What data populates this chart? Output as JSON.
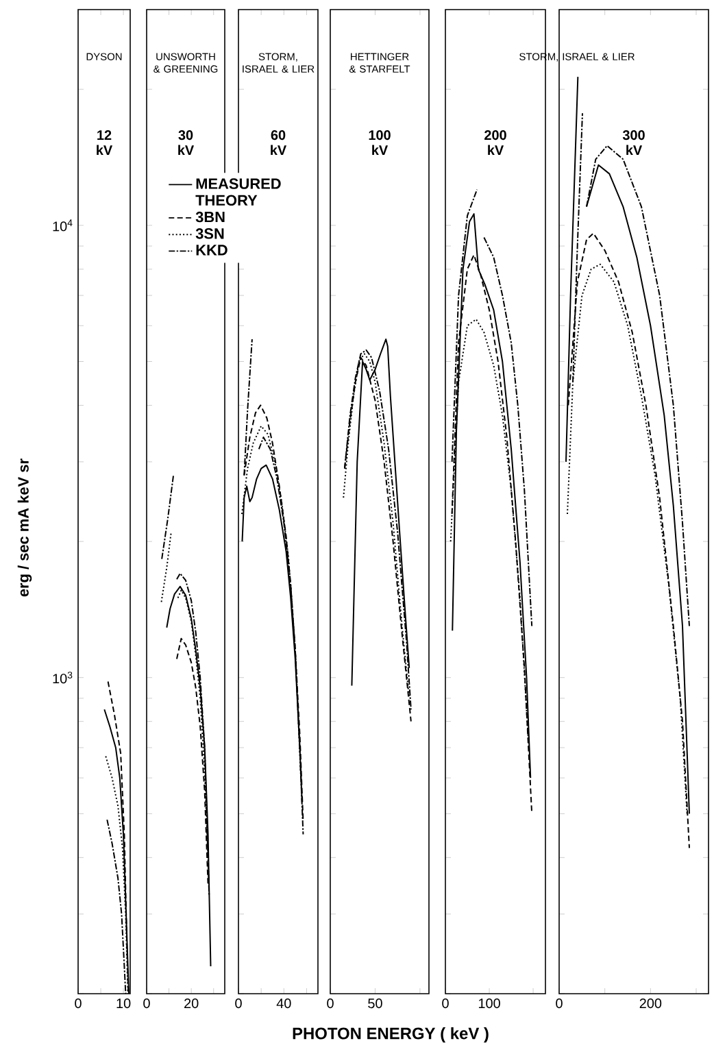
{
  "chart_data": [
    {
      "type": "line",
      "title": "DYSON",
      "subtitle": "12 kV",
      "ylabel": "erg / sec  mA  keV  sr",
      "log": "y",
      "xlim": [
        0,
        11.5
      ],
      "xticks": [
        0,
        {
          "value": 5,
          "label": null
        },
        10
      ],
      "ylim": [
        200,
        30000
      ],
      "yticks": [
        {
          "value": 200,
          "label": null
        },
        {
          "value": 300,
          "label": null
        },
        {
          "value": 400,
          "label": null
        },
        {
          "value": 500,
          "label": null
        },
        {
          "value": 600,
          "label": null
        },
        {
          "value": 700,
          "label": null
        },
        {
          "value": 800,
          "label": null
        },
        {
          "value": 900,
          "label": null
        },
        {
          "value": 1000,
          "label": "10$^{3}$"
        },
        {
          "value": 2000,
          "label": null
        },
        {
          "value": 3000,
          "label": null
        },
        {
          "value": 4000,
          "label": null
        },
        {
          "value": 5000,
          "label": null
        },
        {
          "value": 6000,
          "label": null
        },
        {
          "value": 7000,
          "label": null
        },
        {
          "value": 8000,
          "label": null
        },
        {
          "value": 9000,
          "label": null
        },
        {
          "value": 10000,
          "label": "10$^{4}$"
        },
        {
          "value": 20000,
          "label": null
        }
      ],
      "series": [
        {
          "color": "#000000",
          "line_style": "solid",
          "x": [
            5.8,
            7,
            8.3,
            9.2,
            10,
            10.6,
            11.2
          ],
          "values": [
            850,
            780,
            700,
            600,
            450,
            300,
            200
          ]
        },
        {
          "color": "#000000",
          "line_style": "dashed",
          "x": [
            6.6,
            8,
            9.4,
            10.2,
            10.8,
            11.1
          ],
          "values": [
            980,
            830,
            680,
            450,
            250,
            200
          ]
        },
        {
          "color": "#000000",
          "line_style": "dotted",
          "x": [
            6.1,
            7.5,
            8.8,
            9.8,
            10.5,
            11
          ],
          "values": [
            670,
            600,
            520,
            420,
            300,
            200
          ]
        },
        {
          "color": "#000000",
          "line_style": "dashdot",
          "x": [
            6.4,
            7.5,
            8.8,
            9.6,
            10.2,
            10.5
          ],
          "values": [
            485,
            430,
            360,
            300,
            230,
            200
          ]
        }
      ]
    },
    {
      "type": "line",
      "title": "UNSWORTH & GREENING",
      "subtitle": "30 kV",
      "log": "y",
      "tick_labels": "x",
      "legend": "top",
      "legend_title": "THEORY",
      "xlim": [
        0,
        35
      ],
      "xticks": [
        0,
        {
          "value": 10,
          "label": null
        },
        20,
        {
          "value": 30,
          "label": null
        }
      ],
      "ylim": [
        200,
        30000
      ],
      "yticks": [
        {
          "value": 200,
          "label": null
        },
        {
          "value": 300,
          "label": null
        },
        {
          "value": 400,
          "label": null
        },
        {
          "value": 500,
          "label": null
        },
        {
          "value": 600,
          "label": null
        },
        {
          "value": 700,
          "label": null
        },
        {
          "value": 800,
          "label": null
        },
        {
          "value": 900,
          "label": null
        },
        {
          "value": 1000,
          "label": null
        },
        {
          "value": 2000,
          "label": null
        },
        {
          "value": 3000,
          "label": null
        },
        {
          "value": 4000,
          "label": null
        },
        {
          "value": 5000,
          "label": null
        },
        {
          "value": 6000,
          "label": null
        },
        {
          "value": 7000,
          "label": null
        },
        {
          "value": 8000,
          "label": null
        },
        {
          "value": 9000,
          "label": null
        },
        {
          "value": 10000,
          "label": null
        },
        {
          "value": 20000,
          "label": null
        }
      ],
      "series": [
        {
          "name": "MEASURED",
          "color": "#000000",
          "line_style": "solid",
          "x": [
            9,
            10.5,
            12.5,
            15,
            17.5,
            20,
            22,
            24,
            26,
            27.5,
            28.7
          ],
          "values": [
            1290,
            1420,
            1530,
            1590,
            1520,
            1350,
            1150,
            950,
            700,
            450,
            230
          ]
        },
        {
          "name": "3BN",
          "color": "#000000",
          "line_style": "dashed",
          "x": [
            13.5,
            15.5,
            17.5,
            20,
            22,
            24,
            26,
            27.5
          ],
          "values": [
            1100,
            1220,
            1180,
            1080,
            950,
            780,
            560,
            350
          ]
        },
        {
          "name": "3SN",
          "color": "#000000",
          "line_style": "dotted",
          "x": [
            14,
            15.5,
            17.5,
            20,
            22,
            24,
            26,
            27.5
          ],
          "values": [
            1500,
            1560,
            1500,
            1330,
            1120,
            900,
            620,
            400
          ]
        },
        {
          "name": "KKD",
          "color": "#000000",
          "line_style": "dashdot",
          "x": [
            13.5,
            15,
            17.5,
            20,
            22,
            24,
            26,
            28
          ],
          "values": [
            1650,
            1700,
            1640,
            1480,
            1260,
            1000,
            700,
            330
          ]
        },
        {
          "color": "#000000",
          "line_style": "dotted",
          "x": [
            6.6,
            9,
            11
          ],
          "values": [
            1470,
            1750,
            2100
          ]
        },
        {
          "color": "#000000",
          "line_style": "dashdot",
          "x": [
            6.8,
            9.5,
            12
          ],
          "values": [
            1830,
            2250,
            2800
          ]
        }
      ]
    },
    {
      "type": "line",
      "title": "STORM, ISRAEL & LIER",
      "subtitle": "60 kV",
      "log": "y",
      "tick_labels": "x",
      "xlim": [
        0,
        70
      ],
      "xticks": [
        0,
        {
          "value": 20,
          "label": null
        },
        40,
        {
          "value": 60,
          "label": null
        }
      ],
      "ylim": [
        200,
        30000
      ],
      "yticks": [
        {
          "value": 200,
          "label": null
        },
        {
          "value": 300,
          "label": null
        },
        {
          "value": 400,
          "label": null
        },
        {
          "value": 500,
          "label": null
        },
        {
          "value": 600,
          "label": null
        },
        {
          "value": 700,
          "label": null
        },
        {
          "value": 800,
          "label": null
        },
        {
          "value": 900,
          "label": null
        },
        {
          "value": 1000,
          "label": null
        },
        {
          "value": 2000,
          "label": null
        },
        {
          "value": 3000,
          "label": null
        },
        {
          "value": 4000,
          "label": null
        },
        {
          "value": 5000,
          "label": null
        },
        {
          "value": 6000,
          "label": null
        },
        {
          "value": 7000,
          "label": null
        },
        {
          "value": 8000,
          "label": null
        },
        {
          "value": 9000,
          "label": null
        },
        {
          "value": 10000,
          "label": null
        },
        {
          "value": 20000,
          "label": null
        }
      ],
      "series": [
        {
          "color": "#000000",
          "line_style": "solid",
          "x": [
            3.3,
            5,
            7.3,
            10,
            12,
            16,
            20,
            24.4,
            30,
            36,
            42,
            46,
            50,
            54,
            56
          ],
          "values": [
            2000,
            2500,
            2650,
            2450,
            2500,
            2750,
            2900,
            2950,
            2750,
            2350,
            1900,
            1500,
            1100,
            700,
            530
          ]
        },
        {
          "color": "#000000",
          "line_style": "dashed",
          "x": [
            5,
            10,
            15,
            19.5,
            25,
            30,
            36,
            42,
            46,
            50,
            54,
            57
          ],
          "values": [
            2800,
            3400,
            3850,
            4000,
            3750,
            3300,
            2650,
            2050,
            1600,
            1150,
            750,
            480
          ]
        },
        {
          "color": "#000000",
          "line_style": "dotted",
          "x": [
            3,
            8,
            13,
            20,
            26,
            32,
            38,
            44,
            50,
            55
          ],
          "values": [
            2300,
            2900,
            3300,
            3600,
            3450,
            3000,
            2450,
            1850,
            1150,
            600
          ]
        },
        {
          "color": "#000000",
          "line_style": "dashdot",
          "x": [
            5,
            8,
            12,
            14,
            18,
            22,
            28,
            34,
            40,
            46,
            50,
            54,
            57
          ],
          "values": [
            2800,
            3900,
            5600,
            null,
            3200,
            3400,
            3200,
            2750,
            2200,
            1600,
            1150,
            700,
            450
          ]
        }
      ]
    },
    {
      "type": "line",
      "title": "HETTINGER & STARFELT",
      "subtitle": "100 kV",
      "xlabel": "PHOTON  ENERGY ( keV )",
      "log": "y",
      "tick_labels": "x",
      "xlim": [
        0,
        110
      ],
      "xticks": [
        0,
        50,
        {
          "value": 100,
          "label": null
        }
      ],
      "ylim": [
        200,
        30000
      ],
      "yticks": [
        {
          "value": 200,
          "label": null
        },
        {
          "value": 300,
          "label": null
        },
        {
          "value": 400,
          "label": null
        },
        {
          "value": 500,
          "label": null
        },
        {
          "value": 600,
          "label": null
        },
        {
          "value": 700,
          "label": null
        },
        {
          "value": 800,
          "label": null
        },
        {
          "value": 900,
          "label": null
        },
        {
          "value": 1000,
          "label": null
        },
        {
          "value": 2000,
          "label": null
        },
        {
          "value": 3000,
          "label": null
        },
        {
          "value": 4000,
          "label": null
        },
        {
          "value": 5000,
          "label": null
        },
        {
          "value": 6000,
          "label": null
        },
        {
          "value": 7000,
          "label": null
        },
        {
          "value": 8000,
          "label": null
        },
        {
          "value": 9000,
          "label": null
        },
        {
          "value": 10000,
          "label": null
        },
        {
          "value": 20000,
          "label": null
        }
      ],
      "series": [
        {
          "color": "#000000",
          "line_style": "solid",
          "x": [
            24,
            30,
            36,
            40,
            44,
            50,
            56,
            62,
            64,
            67,
            72,
            78,
            84,
            88
          ],
          "values": [
            960,
            3000,
            5000,
            4800,
            4550,
            4800,
            5200,
            5600,
            5400,
            4200,
            3000,
            2000,
            1350,
            1050
          ]
        },
        {
          "color": "#000000",
          "line_style": "dashed",
          "x": [
            16,
            22,
            28,
            34,
            40,
            50,
            60,
            70,
            80,
            90
          ],
          "values": [
            2900,
            3700,
            4500,
            5100,
            4900,
            4100,
            3000,
            2000,
            1250,
            800
          ]
        },
        {
          "color": "#000000",
          "line_style": "dotted",
          "x": [
            14.7,
            20,
            26,
            32,
            38,
            44,
            50,
            60,
            70,
            80,
            88
          ],
          "values": [
            2500,
            3300,
            4200,
            5000,
            5200,
            5000,
            4500,
            3300,
            2200,
            1300,
            900
          ]
        },
        {
          "color": "#000000",
          "line_style": "dashdot",
          "x": [
            16,
            22,
            28,
            34,
            40,
            46,
            55,
            65,
            75,
            85,
            90
          ],
          "values": [
            2900,
            3800,
            4600,
            5200,
            5300,
            5100,
            4300,
            3200,
            2100,
            1200,
            850
          ]
        }
      ]
    },
    {
      "type": "line",
      "title": "STORM, ISRAEL & LIER",
      "subtitle": "200 kV",
      "log": "y",
      "tick_labels": "x",
      "xlim": [
        0,
        228
      ],
      "xticks": [
        0,
        100,
        {
          "value": 200,
          "label": null
        }
      ],
      "ylim": [
        200,
        30000
      ],
      "yticks": [
        {
          "value": 200,
          "label": null
        },
        {
          "value": 300,
          "label": null
        },
        {
          "value": 400,
          "label": null
        },
        {
          "value": 500,
          "label": null
        },
        {
          "value": 600,
          "label": null
        },
        {
          "value": 700,
          "label": null
        },
        {
          "value": 800,
          "label": null
        },
        {
          "value": 900,
          "label": null
        },
        {
          "value": 1000,
          "label": null
        },
        {
          "value": 2000,
          "label": null
        },
        {
          "value": 3000,
          "label": null
        },
        {
          "value": 4000,
          "label": null
        },
        {
          "value": 5000,
          "label": null
        },
        {
          "value": 6000,
          "label": null
        },
        {
          "value": 7000,
          "label": null
        },
        {
          "value": 8000,
          "label": null
        },
        {
          "value": 9000,
          "label": null
        },
        {
          "value": 10000,
          "label": null
        },
        {
          "value": 20000,
          "label": null
        }
      ],
      "series": [
        {
          "color": "#000000",
          "line_style": "solid",
          "x": [
            16,
            25,
            40,
            55,
            65,
            75,
            90,
            110,
            130,
            150,
            170,
            185,
            194
          ],
          "values": [
            1270,
            3500,
            8000,
            10200,
            10600,
            8000,
            7400,
            6500,
            5000,
            3200,
            1800,
            1000,
            600
          ]
        },
        {
          "color": "#000000",
          "line_style": "dashed",
          "x": [
            15,
            30,
            50,
            65,
            80,
            100,
            120,
            140,
            160,
            180,
            197
          ],
          "values": [
            2300,
            5500,
            8000,
            8600,
            7800,
            6500,
            5000,
            3400,
            2000,
            1050,
            500
          ]
        },
        {
          "color": "#000000",
          "line_style": "dotted",
          "x": [
            12,
            30,
            50,
            70,
            88,
            110,
            130,
            150,
            170,
            190
          ],
          "values": [
            2000,
            4500,
            6000,
            6200,
            5800,
            4900,
            3800,
            2600,
            1500,
            700
          ]
        },
        {
          "color": "#000000",
          "line_style": "dashdot",
          "x": [
            15,
            30,
            50,
            72,
            80,
            88,
            110,
            130,
            150,
            165,
            180,
            197
          ],
          "values": [
            3000,
            7000,
            10500,
            12000,
            null,
            9400,
            8500,
            7000,
            5500,
            4000,
            2600,
            1300
          ]
        }
      ]
    },
    {
      "type": "line",
      "subtitle": "300 kV",
      "log": "y",
      "tick_labels": "x",
      "xlim": [
        0,
        327
      ],
      "xticks": [
        0,
        {
          "value": 100,
          "label": null
        },
        200,
        {
          "value": 300,
          "label": null
        }
      ],
      "ylim": [
        200,
        30000
      ],
      "yticks": [
        {
          "value": 200,
          "label": null
        },
        {
          "value": 300,
          "label": null
        },
        {
          "value": 400,
          "label": null
        },
        {
          "value": 500,
          "label": null
        },
        {
          "value": 600,
          "label": null
        },
        {
          "value": 700,
          "label": null
        },
        {
          "value": 800,
          "label": null
        },
        {
          "value": 900,
          "label": null
        },
        {
          "value": 1000,
          "label": null
        },
        {
          "value": 2000,
          "label": null
        },
        {
          "value": 3000,
          "label": null
        },
        {
          "value": 4000,
          "label": null
        },
        {
          "value": 5000,
          "label": null
        },
        {
          "value": 6000,
          "label": null
        },
        {
          "value": 7000,
          "label": null
        },
        {
          "value": 8000,
          "label": null
        },
        {
          "value": 9000,
          "label": null
        },
        {
          "value": 10000,
          "label": null
        },
        {
          "value": 20000,
          "label": null
        }
      ],
      "series": [
        {
          "color": "#000000",
          "line_style": "solid",
          "x": [
            60,
            86,
            110,
            140,
            170,
            200,
            230,
            250,
            270,
            285
          ],
          "values": [
            11000,
            13600,
            13000,
            11000,
            8500,
            6000,
            3800,
            2400,
            1300,
            500
          ]
        },
        {
          "color": "#000000",
          "line_style": "dashed",
          "x": [
            20,
            40,
            60,
            75,
            100,
            130,
            160,
            190,
            220,
            250,
            270,
            285
          ],
          "values": [
            4000,
            7500,
            9300,
            9600,
            8800,
            7500,
            5800,
            4000,
            2500,
            1300,
            800,
            420
          ]
        },
        {
          "color": "#000000",
          "line_style": "dotted",
          "x": [
            18,
            30,
            50,
            70,
            90,
            120,
            150,
            180,
            210,
            240,
            265,
            280
          ],
          "values": [
            2300,
            4500,
            7000,
            8000,
            8200,
            7500,
            6000,
            4200,
            2800,
            1600,
            900,
            500
          ]
        },
        {
          "color": "#000000",
          "line_style": "dashdot",
          "x": [
            60,
            80,
            105,
            140,
            180,
            220,
            250,
            270,
            285
          ],
          "values": [
            11000,
            14000,
            15000,
            14000,
            11000,
            7000,
            4000,
            2200,
            1300
          ]
        },
        {
          "color": "#000000",
          "line_style": "solid",
          "x": [
            15,
            25,
            35,
            41
          ],
          "values": [
            3000,
            7000,
            14000,
            21300
          ]
        },
        {
          "color": "#000000",
          "line_style": "dashdot",
          "x": [
            30,
            40,
            51
          ],
          "values": [
            4500,
            9000,
            17700
          ]
        }
      ]
    }
  ]
}
